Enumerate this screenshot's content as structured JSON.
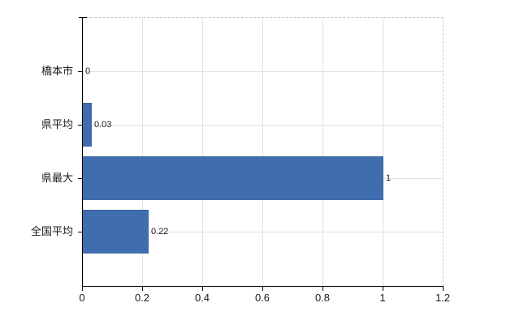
{
  "chart_data": {
    "type": "bar",
    "orientation": "horizontal",
    "title": "",
    "xlabel": "",
    "ylabel": "",
    "categories": [
      "橋本市",
      "県平均",
      "県最大",
      "全国平均"
    ],
    "values": [
      0,
      0.03,
      1,
      0.22
    ],
    "value_labels": [
      "0",
      "0.03",
      "1",
      "0.22"
    ],
    "xlim": [
      0,
      1.2
    ],
    "x_ticks": [
      0,
      0.2,
      0.4,
      0.6,
      0.8,
      1,
      1.2
    ],
    "x_tick_labels": [
      "0",
      "0.2",
      "0.4",
      "0.6",
      "0.8",
      "1",
      "1.2"
    ],
    "grid": true,
    "legend": false
  },
  "colors": {
    "bar_fill": "#406dad",
    "bar_edge": "#38639c",
    "gridline": "#dee2da",
    "plot_border": "#c9c9c9",
    "axis_line": "#000000",
    "label_text": "#1a1a1a",
    "background": "#ffffff"
  }
}
